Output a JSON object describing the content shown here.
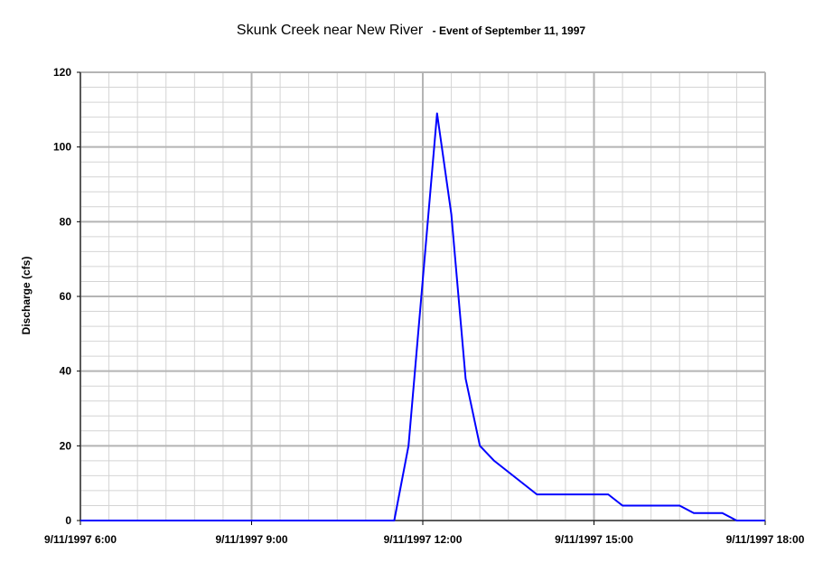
{
  "chart_data": {
    "type": "line",
    "title": "Skunk Creek near New River",
    "subtitle": "- Event of September 11, 1997",
    "xlabel": "",
    "ylabel": "Discharge (cfs)",
    "x_ticks": [
      "9/11/1997 6:00",
      "9/11/1997 9:00",
      "9/11/1997 12:00",
      "9/11/1997 15:00",
      "9/11/1997 18:00"
    ],
    "x_tick_hours": [
      6,
      9,
      12,
      15,
      18
    ],
    "xlim": [
      "9/11/1997 6:00",
      "9/11/1997 18:00"
    ],
    "ylim": [
      0,
      120
    ],
    "y_ticks": [
      0,
      20,
      40,
      60,
      80,
      100,
      120
    ],
    "grid": true,
    "legend": "none",
    "series": [
      {
        "color": "#0000ff",
        "x": [
          "9/11/1997 6:00",
          "9/11/1997 11:30",
          "9/11/1997 11:45",
          "9/11/1997 12:15",
          "9/11/1997 12:30",
          "9/11/1997 12:45",
          "9/11/1997 13:00",
          "9/11/1997 13:15",
          "9/11/1997 14:00",
          "9/11/1997 15:15",
          "9/11/1997 15:30",
          "9/11/1997 16:30",
          "9/11/1997 16:45",
          "9/11/1997 17:15",
          "9/11/1997 17:30",
          "9/11/1997 18:00"
        ],
        "y": [
          0,
          0,
          20,
          109,
          82,
          38,
          20,
          16,
          7,
          7,
          4,
          4,
          2,
          2,
          0,
          0
        ]
      }
    ]
  }
}
